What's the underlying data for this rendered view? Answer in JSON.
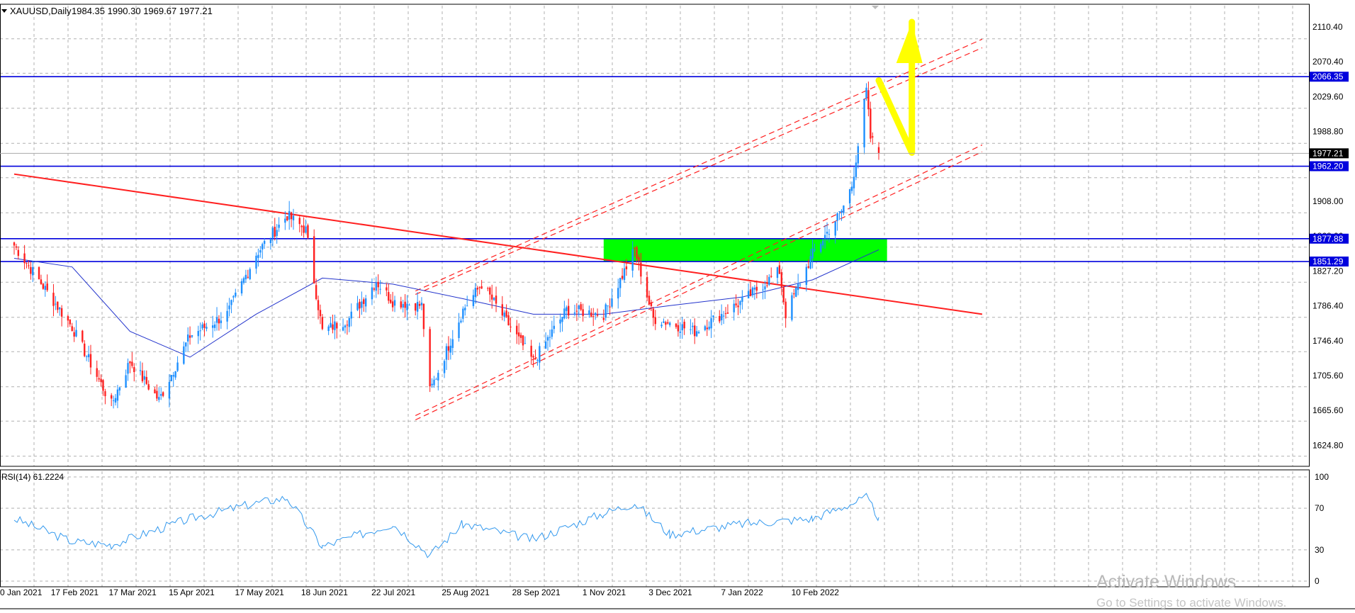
{
  "window": {
    "symbol_label": "XAUUSD,Daily",
    "ohlc_label": "1984.35 1990.30 1969.67 1977.21"
  },
  "indicator": {
    "label": "RSI(14) 61.2224"
  },
  "watermark": {
    "line1": "Activate Windows",
    "line2": "Go to Settings to activate Windows."
  },
  "colors": {
    "bull_candle": "#1e90ff",
    "bear_candle": "#ff2020",
    "moving_average": "#2233cc",
    "rsi_line": "#3399ee",
    "horizontal_levels": "#0000dd",
    "trendline": "#ff2020",
    "supply_zone": "#00ff00",
    "annotation_arrow": "#ffff00",
    "grid": "#b0b0b0"
  },
  "chart_data": [
    {
      "type": "candlestick",
      "title": "XAUUSD,Daily",
      "ohlc_last": {
        "open": 1984.35,
        "high": 1990.3,
        "low": 1969.67,
        "close": 1977.21
      },
      "current_price": 1977.21,
      "y_ticks": [
        2110.4,
        2070.4,
        2029.6,
        1988.8,
        1948.8,
        1908.0,
        1868.0,
        1827.2,
        1786.4,
        1746.4,
        1705.6,
        1665.6,
        1624.8
      ],
      "ylim": [
        1613,
        2149
      ],
      "x_ticks": [
        "20 Jan 2021",
        "17 Feb 2021",
        "17 Mar 2021",
        "15 Apr 2021",
        "17 May 2021",
        "18 Jun 2021",
        "22 Jul 2021",
        "25 Aug 2021",
        "28 Sep 2021",
        "1 Nov 2021",
        "3 Dec 2021",
        "7 Jan 2022",
        "10 Feb 2022"
      ],
      "grid": true,
      "price_path": [
        [
          "20 Jan 2021",
          1870
        ],
        [
          "17 Feb 2021",
          1775
        ],
        [
          "8 Mar 2021",
          1685
        ],
        [
          "17 Mar 2021",
          1735
        ],
        [
          "31 Mar 2021",
          1690
        ],
        [
          "15 Apr 2021",
          1765
        ],
        [
          "3 May 2021",
          1790
        ],
        [
          "17 May 2021",
          1860
        ],
        [
          "1 Jun 2021",
          1905
        ],
        [
          "10 Jun 2021",
          1888
        ],
        [
          "18 Jun 2021",
          1770
        ],
        [
          "1 Jul 2021",
          1785
        ],
        [
          "14 Jul 2021",
          1828
        ],
        [
          "22 Jul 2021",
          1805
        ],
        [
          "5 Aug 2021",
          1800
        ],
        [
          "9 Aug 2021",
          1700
        ],
        [
          "25 Aug 2021",
          1795
        ],
        [
          "3 Sep 2021",
          1825
        ],
        [
          "28 Sep 2021",
          1735
        ],
        [
          "14 Oct 2021",
          1795
        ],
        [
          "1 Nov 2021",
          1790
        ],
        [
          "16 Nov 2021",
          1865
        ],
        [
          "25 Nov 2021",
          1785
        ],
        [
          "3 Dec 2021",
          1780
        ],
        [
          "15 Dec 2021",
          1770
        ],
        [
          "7 Jan 2022",
          1805
        ],
        [
          "25 Jan 2022",
          1840
        ],
        [
          "28 Jan 2022",
          1790
        ],
        [
          "10 Feb 2022",
          1860
        ],
        [
          "24 Feb 2022",
          1910
        ],
        [
          "1 Mar 2022",
          1940
        ],
        [
          "8 Mar 2022",
          2050
        ],
        [
          "10 Mar 2022",
          1995
        ],
        [
          "14 Mar 2022",
          1977
        ]
      ],
      "moving_average_path": [
        [
          "20 Jan 2021",
          1855
        ],
        [
          "17 Feb 2021",
          1845
        ],
        [
          "17 Mar 2021",
          1770
        ],
        [
          "15 Apr 2021",
          1740
        ],
        [
          "17 May 2021",
          1790
        ],
        [
          "18 Jun 2021",
          1832
        ],
        [
          "22 Jul 2021",
          1825
        ],
        [
          "25 Aug 2021",
          1808
        ],
        [
          "28 Sep 2021",
          1790
        ],
        [
          "1 Nov 2021",
          1790
        ],
        [
          "3 Dec 2021",
          1800
        ],
        [
          "7 Jan 2022",
          1810
        ],
        [
          "10 Feb 2022",
          1830
        ],
        [
          "14 Mar 2022",
          1865
        ]
      ],
      "horizontal_levels": [
        2066.35,
        1962.2,
        1877.88,
        1851.29
      ],
      "supply_zone": {
        "from": "1 Nov 2021",
        "to": "18 Mar 2022",
        "low": 1851.29,
        "high": 1877.88
      },
      "trendlines": [
        {
          "style": "solid",
          "points": [
            [
              "20 Jan 2021",
              1953
            ],
            [
              "3 May 2022",
              1790
            ]
          ]
        },
        {
          "style": "dashed",
          "points": [
            [
              "2 Aug 2021",
              1817
            ],
            [
              "3 May 2022",
              2110
            ]
          ]
        },
        {
          "style": "dashed",
          "points": [
            [
              "2 Aug 2021",
              1813
            ],
            [
              "3 May 2022",
              2100
            ]
          ]
        },
        {
          "style": "dashed",
          "points": [
            [
              "2 Aug 2021",
              1672
            ],
            [
              "3 May 2022",
              1987
            ]
          ]
        },
        {
          "style": "dashed",
          "points": [
            [
              "2 Aug 2021",
              1667
            ],
            [
              "3 May 2022",
              1979
            ]
          ]
        }
      ],
      "annotations": [
        {
          "type": "arrow",
          "points": [
            [
              "14 Mar 2022",
              2062
            ],
            [
              "30 Mar 2022",
              1978
            ],
            [
              "30 Mar 2022",
              2130
            ]
          ]
        }
      ]
    },
    {
      "type": "line",
      "title": "RSI(14) 61.2224",
      "y_ticks": [
        100,
        70,
        30,
        0
      ],
      "ylim": [
        0,
        100
      ],
      "current_value": 61.2224,
      "grid": true,
      "x": [
        "20 Jan 2021",
        "17 Feb 2021",
        "8 Mar 2021",
        "15 Apr 2021",
        "17 May 2021",
        "1 Jun 2021",
        "18 Jun 2021",
        "22 Jul 2021",
        "9 Aug 2021",
        "25 Aug 2021",
        "28 Sep 2021",
        "1 Nov 2021",
        "16 Nov 2021",
        "3 Dec 2021",
        "7 Jan 2022",
        "10 Feb 2022",
        "8 Mar 2022",
        "14 Mar 2022"
      ],
      "values": [
        60,
        38,
        35,
        60,
        75,
        80,
        33,
        55,
        25,
        55,
        40,
        65,
        75,
        45,
        55,
        60,
        80,
        61
      ]
    }
  ]
}
